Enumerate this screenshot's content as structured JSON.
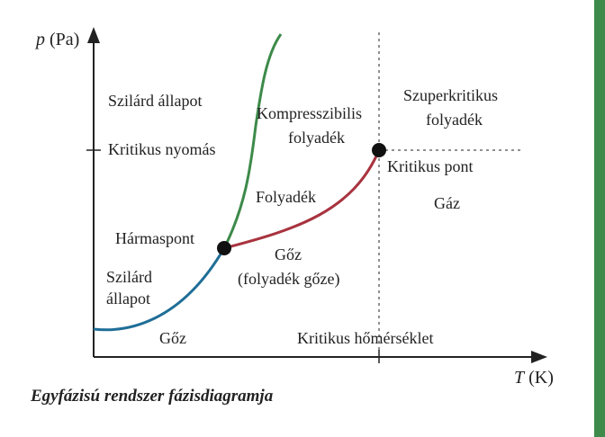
{
  "axes": {
    "y_var": "p",
    "y_unit": " (Pa)",
    "x_var": "T",
    "x_unit": " (K)"
  },
  "labels": {
    "solid_upper": "Szilárd állapot",
    "critical_pressure": "Kritikus nyomás",
    "compressible_1": "Kompresszibilis",
    "compressible_2": "folyadék",
    "supercritical_1": "Szuperkritikus",
    "supercritical_2": "folyadék",
    "critical_point": "Kritikus pont",
    "liquid": "Folyadék",
    "gas": "Gáz",
    "triple_point": "Hármaspont",
    "vapor_1": "Gőz",
    "vapor_2": "(folyadék gőze)",
    "solid_lower_1": "Szilárd",
    "solid_lower_2": "állapot",
    "vapor_lower": "Gőz",
    "critical_temperature": "Kritikus hőmérséklet"
  },
  "caption": "Egyfázisú rendszer fázisdiagramja",
  "colors": {
    "sublimation_curve": "#1f6e97",
    "melting_curve": "#3d8a4a",
    "vaporization_curve": "#a8333f",
    "triple_point_label": "#1f6e97",
    "critical_point_label": "#a8333f",
    "right_border": "#3d8a4a"
  }
}
